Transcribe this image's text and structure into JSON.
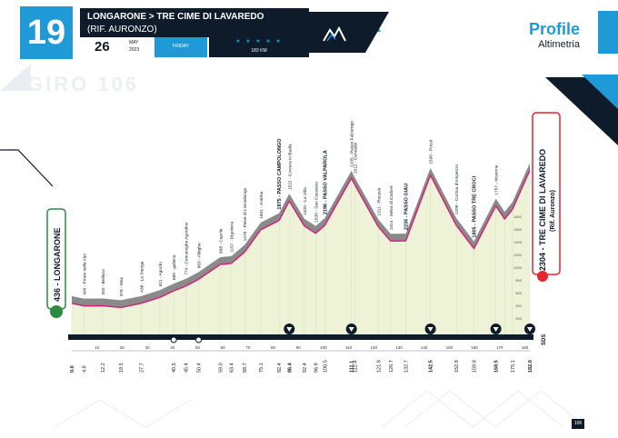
{
  "stage": {
    "number": "19",
    "title": "LONGARONE > TRE CIME DI LAVAREDO",
    "subtitle": "(RIF. AURONZO)",
    "day": "26",
    "month": "MAY",
    "year": "2023",
    "weekday": "FRIDAY",
    "distance": "183 KM",
    "stars": "★ ★ ★ ★ ★"
  },
  "header": {
    "title": "Profile",
    "subtitle": "Altimetria",
    "watermark": "GIRO 106"
  },
  "colors": {
    "accent": "#1f9ad6",
    "navy": "#0d1b2a",
    "climb": "#d81b7a",
    "finish_red": "#e3262f",
    "start_green": "#2e8b3f",
    "fill": "#eef3d8",
    "ridge": "#8a8a8a"
  },
  "start": {
    "label": "436 - LONGARONE"
  },
  "finish": {
    "label": "2304 - TRE CIME DI LAVAREDO",
    "sub": "(Rif. Auronzo)"
  },
  "waypoints": [
    {
      "label": "400 - Ponte nelle Alpi"
    },
    {
      "label": "402 - Belluno"
    },
    {
      "label": "378 - Mas"
    },
    {
      "label": "438 - La Stanga"
    },
    {
      "label": "611 - Agordo"
    },
    {
      "label": "680 - galleria"
    },
    {
      "label": "774 - Cencenighe Agordino"
    },
    {
      "label": "983 - Alleghe"
    },
    {
      "label": "998 - Caprile"
    },
    {
      "label": "1157 - Digonera"
    },
    {
      "label": "1470 - Pieve di Livinallongo"
    },
    {
      "label": "1601 - Arabba"
    },
    {
      "label": "1875 - PASSO CAMPOLONGO",
      "bold": true
    },
    {
      "label": "1522 - Corvara in Badia"
    },
    {
      "label": "1420 - La Villa"
    },
    {
      "label": "1530 - San Cassiano"
    },
    {
      "label": "2196 - PASSO VALPAROLA",
      "bold": true
    },
    {
      "label": "2105 - Passo Falzarego"
    },
    {
      "label": "1512 - Cernadoi"
    },
    {
      "label": "1311 - Rucavà"
    },
    {
      "label": "1314 - Selva di Cadore"
    },
    {
      "label": "2236 - PASSO GIAU",
      "bold": true
    },
    {
      "label": "1530 - Pocol"
    },
    {
      "label": "1205 - Cortina d'Ampezzo"
    },
    {
      "label": "1805 - PASSO TRE CROCI",
      "bold": true
    },
    {
      "label": "1757 - Misurina"
    }
  ],
  "km_markers": [
    "0.0",
    "4.9",
    "12.2",
    "19.5",
    "27.7",
    "40.5",
    "45.4",
    "50.4",
    "59.0",
    "63.4",
    "68.7",
    "75.1",
    "82.4",
    "86.4",
    "92.4",
    "96.9",
    "100.5",
    "111.1",
    "112.4",
    "121.8",
    "126.7",
    "132.7",
    "142.5",
    "152.8",
    "159.8",
    "168.5",
    "175.1",
    "182.0"
  ],
  "axis_ticks": [
    "10",
    "20",
    "30",
    "40",
    "50",
    "60",
    "70",
    "80",
    "90",
    "100",
    "110",
    "120",
    "130",
    "140",
    "150",
    "160",
    "170",
    "180"
  ],
  "elev_ticks": [
    "1800",
    "1600",
    "1400",
    "1200",
    "1000",
    "800",
    "600",
    "400",
    "200"
  ],
  "sds_label": "SDS",
  "page_number": "106",
  "chart_data": {
    "type": "area",
    "title": "",
    "xlabel": "",
    "ylabel": "",
    "xlim": [
      0,
      182
    ],
    "ylim": [
      0,
      2400
    ],
    "x": [
      0,
      4.9,
      12.2,
      19.5,
      27.7,
      35,
      40.5,
      45.4,
      50.4,
      59.0,
      63.4,
      68.7,
      75.1,
      82.4,
      86.4,
      92.4,
      96.9,
      100.5,
      111.1,
      112.4,
      121.8,
      126.7,
      132.7,
      142.5,
      152.8,
      159.8,
      168.5,
      172,
      175.1,
      182.0
    ],
    "series": [
      {
        "values": [
          436,
          400,
          402,
          378,
          438,
          520,
          611,
          680,
          774,
          983,
          998,
          1157,
          1470,
          1601,
          1875,
          1522,
          1420,
          1530,
          2196,
          2105,
          1512,
          1311,
          1314,
          2236,
          1530,
          1205,
          1805,
          1620,
          1757,
          2304
        ]
      }
    ]
  }
}
